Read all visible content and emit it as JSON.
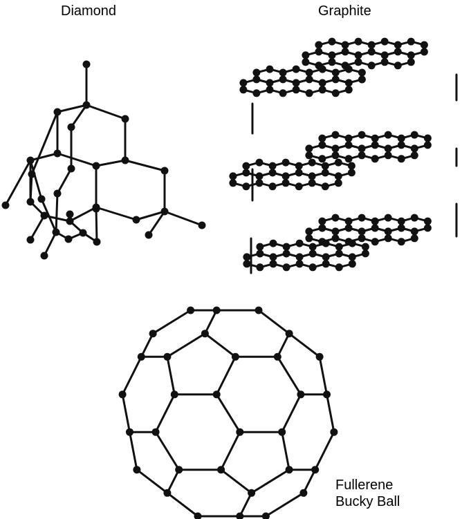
{
  "labels": {
    "diamond": "Diamond",
    "graphite": "Graphite",
    "fullerene_line1": "Fullerene",
    "fullerene_line2": "Bucky Ball"
  },
  "colors": {
    "atom": "#111111",
    "bond": "#111111",
    "background": "#ffffff"
  },
  "structures": [
    "diamond-lattice",
    "graphite-layers",
    "fullerene-c60"
  ]
}
